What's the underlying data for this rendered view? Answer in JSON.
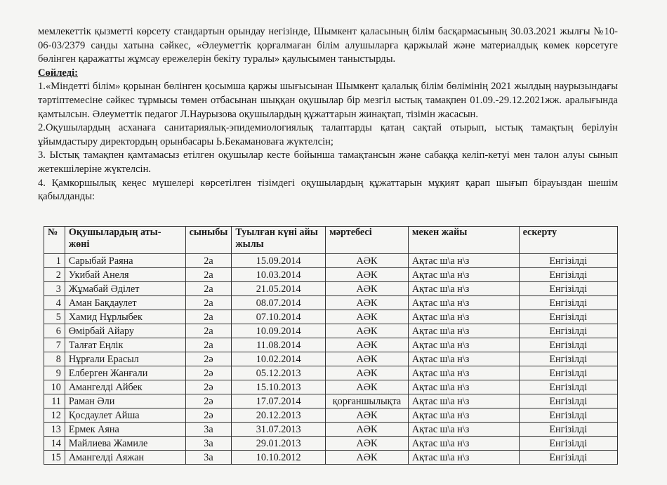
{
  "intro": "мемлекеттік қызметті көрсету стандартын орындау негізінде, Шымкент қаласының білім басқармасының 30.03.2021 жылғы №10-06-03/2379 санды хатына сәйкес, «Әлеуметтік қорғалмаған білім алушыларға қаржылай және материалдық көмек көрсетуге бөлінген қаражатты жұмсау ережелерін бекіту туралы» қаулысымен таныстырды.",
  "heading": "Сөйледі:",
  "items": [
    "1.«Міндетті білім» қорынан бөлінген қосымша қаржы шығысынан Шымкент қалалық білім бөлімінің 2021 жылдың наурызындағы тәртіптемесіне сәйкес тұрмысы төмен отбасынан шыққан оқушылар бір мезгіл ыстық тамақпен 01.09.-29.12.2021жж. аралығында қамтылсын. Әлеуметтік педагог Л.Наурызова оқушылардың құжаттарын жинақтап, тізімін жасасын.",
    "2.Оқушылардың асханаға санитариялық-эпидемиологиялық талаптарды қатаң сақтай отырып, ыстық тамақтың берілуін ұйымдастыру директордың орынбасары Ь.Бекамановаға жүктелсін;",
    "3. Ыстық тамақпен қамтамасыз етілген оқушылар кесте бойынша тамақтансын және сабаққа келіп-кетуі мен талон алуы сынып жетекшілеріне жүктелсін.",
    "4. Қамкоршылық кеңес мүшелері көрсетілген тізімдегі оқушылардың құжаттарын мұқият қарап шығып бірауыздан шешім қабылданды:"
  ],
  "table": {
    "headers": [
      "№",
      "Оқушылардың аты-жөні",
      "сыныбы",
      "Туылған күні айы жылы",
      "мәртебесі",
      "мекен жайы",
      "ескерту"
    ],
    "rows": [
      [
        "1",
        "Сарыбай Раяна",
        "2а",
        "15.09.2014",
        "АӘК",
        "Ақтас ш\\а н\\з",
        "Енгізілді"
      ],
      [
        "2",
        "Укибай Анеля",
        "2а",
        "10.03.2014",
        "АӘК",
        "Ақтас ш\\а н\\з",
        "Енгізілді"
      ],
      [
        "3",
        "Жұмабай Әділет",
        "2а",
        "21.05.2014",
        "АӘК",
        "Ақтас ш\\а н\\з",
        "Енгізілді"
      ],
      [
        "4",
        "Аман Бақдаулет",
        "2а",
        "08.07.2014",
        "АӘК",
        "Ақтас ш\\а н\\з",
        "Енгізілді"
      ],
      [
        "5",
        "Хамид Нұрлыбек",
        "2а",
        "07.10.2014",
        "АӘК",
        "Ақтас ш\\а н\\з",
        "Енгізілді"
      ],
      [
        "6",
        "Өмірбай Айару",
        "2а",
        "10.09.2014",
        "АӘК",
        "Ақтас ш\\а н\\з",
        "Енгізілді"
      ],
      [
        "7",
        "Талғат Еңлік",
        "2а",
        "11.08.2014",
        "АӘК",
        "Ақтас ш\\а н\\з",
        "Енгізілді"
      ],
      [
        "8",
        "Нұрғали Ерасыл",
        "2ә",
        "10.02.2014",
        "АӘК",
        "Ақтас ш\\а н\\з",
        "Енгізілді"
      ],
      [
        "9",
        "Елберген Жанғали",
        "2ә",
        "05.12.2013",
        "АӘК",
        "Ақтас ш\\а н\\з",
        "Енгізілді"
      ],
      [
        "10",
        "Амангелді Айбек",
        "2ә",
        "15.10.2013",
        "АӘК",
        "Ақтас ш\\а н\\з",
        "Енгізілді"
      ],
      [
        "11",
        "Раман Әли",
        "2ә",
        "17.07.2014",
        "қорғаншылықта",
        "Ақтас ш\\а н\\з",
        "Енгізілді"
      ],
      [
        "12",
        "Қосдаулет Айша",
        "2ә",
        "20.12.2013",
        "АӘК",
        "Ақтас ш\\а н\\з",
        "Енгізілді"
      ],
      [
        "13",
        "Ермек Аяна",
        "3а",
        "31.07.2013",
        "АӘК",
        "Ақтас ш\\а н\\з",
        "Енгізілді"
      ],
      [
        "14",
        "Майлиева Жамиле",
        "3а",
        "29.01.2013",
        "АӘК",
        "Ақтас ш\\а н\\з",
        "Енгізілді"
      ],
      [
        "15",
        "Амангелді Аяжан",
        "3а",
        "10.10.2012",
        "АӘК",
        "Ақтас ш\\а н\\з",
        "Енгізілді"
      ]
    ]
  }
}
